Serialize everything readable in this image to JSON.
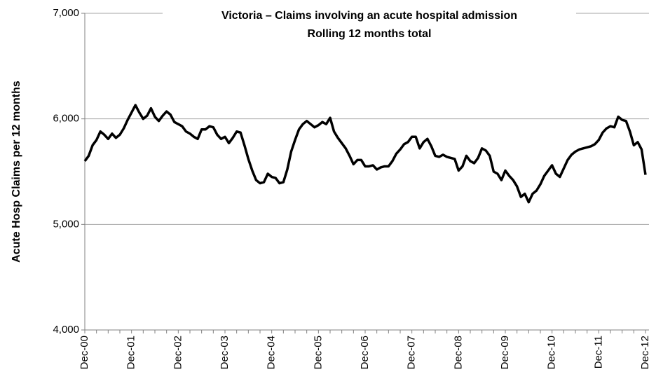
{
  "chart_data": {
    "type": "line",
    "title": "Victoria – Claims involving an acute hospital admission",
    "subtitle": "Rolling 12 months  total",
    "y_label": "Acute Hosp Claims per 12 months",
    "color": "#000000",
    "grid": true,
    "ylim": [
      4000,
      7000
    ],
    "yticks": [
      {
        "value": 4000,
        "label": "4,000"
      },
      {
        "value": 5000,
        "label": "5,000"
      },
      {
        "value": 6000,
        "label": "6,000"
      },
      {
        "value": 7000,
        "label": "7,000"
      }
    ],
    "categories": [
      "Dec-00",
      null,
      null,
      null,
      null,
      null,
      null,
      null,
      null,
      null,
      null,
      null,
      "Dec-01",
      null,
      null,
      null,
      null,
      null,
      null,
      null,
      null,
      null,
      null,
      null,
      "Dec-02",
      null,
      null,
      null,
      null,
      null,
      null,
      null,
      null,
      null,
      null,
      null,
      "Dec-03",
      null,
      null,
      null,
      null,
      null,
      null,
      null,
      null,
      null,
      null,
      null,
      "Dec-04",
      null,
      null,
      null,
      null,
      null,
      null,
      null,
      null,
      null,
      null,
      null,
      "Dec-05",
      null,
      null,
      null,
      null,
      null,
      null,
      null,
      null,
      null,
      null,
      null,
      "Dec-06",
      null,
      null,
      null,
      null,
      null,
      null,
      null,
      null,
      null,
      null,
      null,
      "Dec-07",
      null,
      null,
      null,
      null,
      null,
      null,
      null,
      null,
      null,
      null,
      null,
      "Dec-08",
      null,
      null,
      null,
      null,
      null,
      null,
      null,
      null,
      null,
      null,
      null,
      "Dec-09",
      null,
      null,
      null,
      null,
      null,
      null,
      null,
      null,
      null,
      null,
      null,
      "Dec-10",
      null,
      null,
      null,
      null,
      null,
      null,
      null,
      null,
      null,
      null,
      null,
      "Dec-11",
      null,
      null,
      null,
      null,
      null,
      null,
      null,
      null,
      null,
      null,
      null,
      "Dec-12"
    ],
    "values": [
      5600,
      5650,
      5750,
      5800,
      5880,
      5850,
      5810,
      5860,
      5820,
      5850,
      5910,
      5990,
      6060,
      6130,
      6060,
      6000,
      6030,
      6100,
      6020,
      5980,
      6030,
      6070,
      6040,
      5970,
      5950,
      5930,
      5880,
      5860,
      5830,
      5810,
      5900,
      5900,
      5930,
      5920,
      5850,
      5810,
      5830,
      5770,
      5820,
      5880,
      5870,
      5750,
      5620,
      5510,
      5420,
      5390,
      5400,
      5480,
      5450,
      5440,
      5390,
      5400,
      5520,
      5690,
      5800,
      5900,
      5950,
      5980,
      5950,
      5920,
      5940,
      5970,
      5950,
      6010,
      5880,
      5820,
      5770,
      5720,
      5650,
      5570,
      5610,
      5610,
      5550,
      5550,
      5560,
      5520,
      5540,
      5550,
      5550,
      5600,
      5670,
      5710,
      5760,
      5780,
      5830,
      5830,
      5720,
      5780,
      5810,
      5740,
      5650,
      5640,
      5660,
      5640,
      5630,
      5620,
      5510,
      5550,
      5650,
      5600,
      5580,
      5630,
      5720,
      5700,
      5650,
      5500,
      5480,
      5420,
      5510,
      5460,
      5420,
      5360,
      5260,
      5290,
      5210,
      5290,
      5320,
      5380,
      5460,
      5510,
      5560,
      5480,
      5450,
      5530,
      5610,
      5660,
      5690,
      5710,
      5720,
      5730,
      5740,
      5760,
      5800,
      5870,
      5910,
      5930,
      5920,
      6020,
      5990,
      5980,
      5880,
      5750,
      5780,
      5710,
      5470
    ]
  }
}
